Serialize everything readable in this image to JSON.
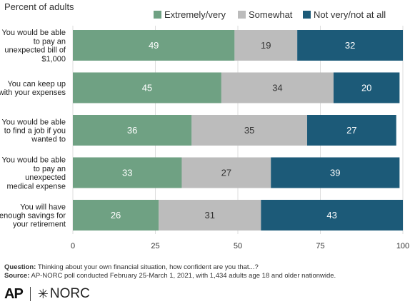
{
  "subtitle": "Percent of adults",
  "legend": [
    {
      "label": "Extremely/very",
      "color": "#6fa183"
    },
    {
      "label": "Somewhat",
      "color": "#bcbcbc"
    },
    {
      "label": "Not very/not at all",
      "color": "#1c5a78"
    }
  ],
  "chart_data": {
    "type": "bar",
    "orientation": "horizontal",
    "stacked": true,
    "categories": [
      [
        "You would be able",
        "to pay an",
        "unexpected bill of",
        "$1,000"
      ],
      [
        "You can keep up",
        "with your expenses"
      ],
      [
        "You would be able",
        "to find a job if you",
        "wanted to"
      ],
      [
        "You would be able",
        "to pay an",
        "unexpected",
        "medical expense"
      ],
      [
        "You will have",
        "enough savings for",
        "your retirement"
      ]
    ],
    "series": [
      {
        "name": "Extremely/very",
        "color": "#6fa183",
        "values": [
          49,
          45,
          36,
          33,
          26
        ]
      },
      {
        "name": "Somewhat",
        "color": "#bcbcbc",
        "values": [
          19,
          34,
          35,
          27,
          31
        ]
      },
      {
        "name": "Not very/not at all",
        "color": "#1c5a78",
        "values": [
          32,
          20,
          27,
          39,
          43
        ]
      }
    ],
    "xlim": [
      0,
      100
    ],
    "xticks": [
      "0",
      "25",
      "50",
      "75",
      "100"
    ],
    "grid": true,
    "legend_position": "top-right"
  },
  "notes": {
    "question_label": "Question:",
    "question_text": "Thinking about your own financial situation, how confident are you that...?",
    "source_label": "Source:",
    "source_text": "AP-NORC poll conducted February 25-March 1, 2021, with 1,434 adults age 18 and older nationwide."
  },
  "logos": {
    "ap": "AP",
    "norc": "NORC",
    "norc_mark": "✳"
  }
}
